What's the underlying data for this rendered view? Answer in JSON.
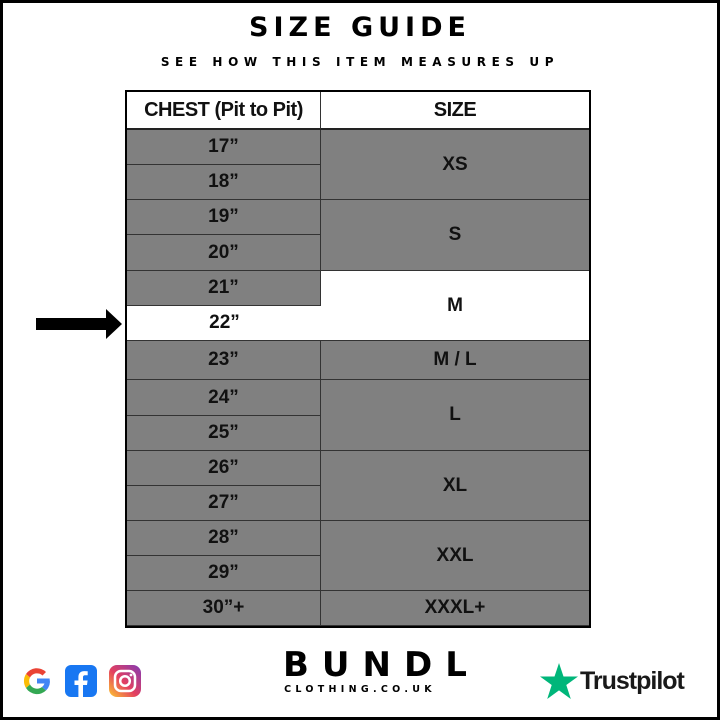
{
  "title": "SIZE GUIDE",
  "subtitle": "SEE HOW THIS ITEM MEASURES UP",
  "table": {
    "headers": {
      "chest": "CHEST (Pit to Pit)",
      "size": "SIZE"
    },
    "chest_rows": [
      "17”",
      "18”",
      "19”",
      "20”",
      "21”",
      "22”",
      "23”",
      "24”",
      "25”",
      "26”",
      "27”",
      "28”",
      "29”",
      "30”+"
    ],
    "size_groups": [
      {
        "label": "XS",
        "rows": 2
      },
      {
        "label": "S",
        "rows": 2
      },
      {
        "label": "M",
        "rows": 2
      },
      {
        "label": "M / L",
        "rows": 1
      },
      {
        "label": "L",
        "rows": 2
      },
      {
        "label": "XL",
        "rows": 2
      },
      {
        "label": "XXL",
        "rows": 2
      },
      {
        "label": "XXXL+",
        "rows": 1
      }
    ],
    "highlighted_chest": "22”",
    "highlighted_size": "M",
    "colors": {
      "row": "#808080",
      "highlight": "#ffffff"
    }
  },
  "brand": {
    "name": "BUNDL",
    "site": "CLOTHING.CO.UK"
  },
  "social_icons": [
    "google-icon",
    "facebook-icon",
    "instagram-icon"
  ],
  "trustpilot": {
    "label": "Trustpilot",
    "color": "#00b67a"
  }
}
